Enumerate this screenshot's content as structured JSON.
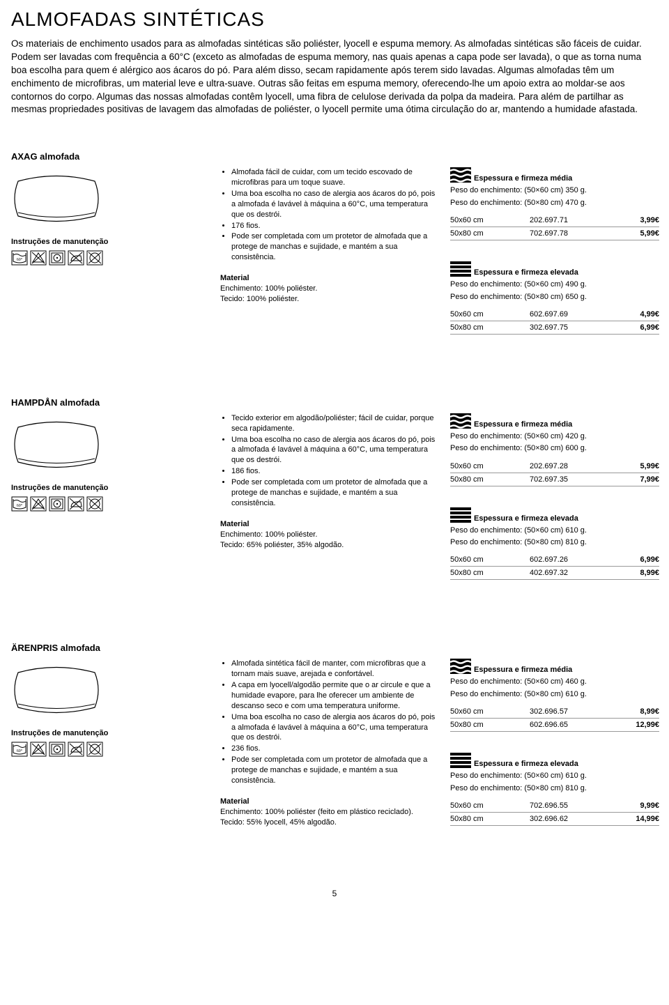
{
  "page": {
    "title": "ALMOFADAS SINTÉTICAS",
    "intro": "Os materiais de enchimento usados para as almofadas sintéticas são poliéster, lyocell e espuma memory. As almofadas sintéticas são fáceis de cuidar. Podem ser lavadas com frequência a 60°C (exceto as almofadas de espuma memory, nas quais apenas a capa pode ser lavada), o que as torna numa boa escolha para quem é alérgico aos ácaros do pó. Para além disso, secam rapidamente após terem sido lavadas.\nAlgumas almofadas têm um enchimento de microfibras, um material leve e ultra-suave. Outras são feitas em espuma memory, oferecendo-lhe um apoio extra ao moldar-se aos contornos do corpo. Algumas das nossas almofadas contêm lyocell, uma fibra de celulose derivada da polpa da madeira. Para além de partilhar as mesmas propriedades positivas de lavagem das almofadas de poliéster, o lyocell permite uma ótima circulação do ar, mantendo a humidade afastada.",
    "care_label": "Instruções de manutenção",
    "material_label": "Material",
    "firmness_medium": "Espessura e firmeza média",
    "firmness_high": "Espessura e firmeza elevada",
    "weight_prefix": "Peso do enchimento:",
    "page_number": "5"
  },
  "products": [
    {
      "name": "AXAG almofada",
      "bullets": [
        "Almofada fácil de cuidar, com um tecido escovado de microfibras para um toque suave.",
        "Uma boa escolha no caso de alergia aos ácaros do pó, pois a almofada é lavável à máquina a 60°C, uma temperatura que os destrói.",
        "176 fios.",
        "Pode ser completada com um protetor de almofada que a protege de manchas e sujidade, e mantém a sua consistência."
      ],
      "material": [
        "Enchimento: 100% poliéster.",
        "Tecido: 100% poliéster."
      ],
      "variants": [
        {
          "firmness": "medium",
          "weights": [
            "(50×60 cm) 350 g.",
            "(50×80 cm) 470 g."
          ],
          "rows": [
            {
              "size": "50x60 cm",
              "art": "202.697.71",
              "price": "3,99€"
            },
            {
              "size": "50x80 cm",
              "art": "702.697.78",
              "price": "5,99€"
            }
          ]
        },
        {
          "firmness": "high",
          "weights": [
            "(50×60 cm) 490 g.",
            "(50×80 cm) 650 g."
          ],
          "rows": [
            {
              "size": "50x60 cm",
              "art": "602.697.69",
              "price": "4,99€"
            },
            {
              "size": "50x80 cm",
              "art": "302.697.75",
              "price": "6,99€"
            }
          ]
        }
      ]
    },
    {
      "name": "HAMPDÅN almofada",
      "bullets": [
        "Tecido exterior em algodão/poliéster; fácil de cuidar, porque seca rapidamente.",
        "Uma boa escolha no caso de alergia aos ácaros do pó, pois a almofada é lavável à máquina a 60°C, uma temperatura que os destrói.",
        "186 fios.",
        "Pode ser completada com um protetor de almofada que a protege de manchas e sujidade, e mantém a sua consistência."
      ],
      "material": [
        "Enchimento: 100% poliéster.",
        "Tecido: 65% poliéster, 35% algodão."
      ],
      "variants": [
        {
          "firmness": "medium",
          "weights": [
            "(50×60 cm) 420 g.",
            "(50×80 cm) 600 g."
          ],
          "rows": [
            {
              "size": "50x60 cm",
              "art": "202.697.28",
              "price": "5,99€"
            },
            {
              "size": "50x80 cm",
              "art": "702.697.35",
              "price": "7,99€"
            }
          ]
        },
        {
          "firmness": "high",
          "weights": [
            "(50×60 cm) 610 g.",
            "(50×80 cm) 810 g."
          ],
          "rows": [
            {
              "size": "50x60 cm",
              "art": "602.697.26",
              "price": "6,99€"
            },
            {
              "size": "50x80 cm",
              "art": "402.697.32",
              "price": "8,99€"
            }
          ]
        }
      ]
    },
    {
      "name": "ÄRENPRIS almofada",
      "bullets": [
        "Almofada sintética fácil de manter, com microfibras que a tornam mais suave, arejada e confortável.",
        "A capa em lyocell/algodão permite que o ar circule e que a humidade evapore, para lhe oferecer um ambiente de descanso seco e com uma temperatura uniforme.",
        "Uma boa escolha no caso de alergia aos ácaros do pó, pois a almofada é lavável à máquina a 60°C, uma temperatura que os destrói.",
        "236 fios.",
        "Pode ser completada com um protetor de almofada que a protege de manchas e sujidade, e mantém a sua consistência."
      ],
      "material": [
        "Enchimento: 100% poliéster (feito em plástico reciclado).",
        "Tecido: 55% lyocell, 45% algodão."
      ],
      "variants": [
        {
          "firmness": "medium",
          "weights": [
            "(50×60 cm) 460 g.",
            "(50×80 cm) 610 g."
          ],
          "rows": [
            {
              "size": "50x60 cm",
              "art": "302.696.57",
              "price": "8,99€"
            },
            {
              "size": "50x80 cm",
              "art": "602.696.65",
              "price": "12,99€"
            }
          ]
        },
        {
          "firmness": "high",
          "weights": [
            "(50×60 cm) 610 g.",
            "(50×80 cm) 810 g."
          ],
          "rows": [
            {
              "size": "50x60 cm",
              "art": "702.696.55",
              "price": "9,99€"
            },
            {
              "size": "50x80 cm",
              "art": "302.696.62",
              "price": "14,99€"
            }
          ]
        }
      ]
    }
  ]
}
